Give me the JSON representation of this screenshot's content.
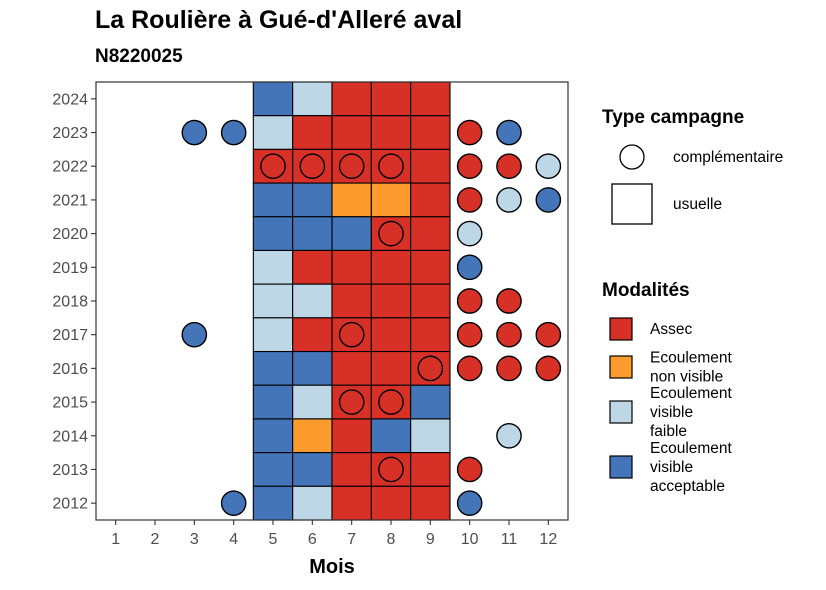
{
  "chart_data": {
    "type": "heatmap",
    "title": "La Roulière à Gué-d'Alleré aval",
    "subtitle": "N8220025",
    "xlabel": "Mois",
    "ylabel": "",
    "x_ticks": [
      "1",
      "2",
      "3",
      "4",
      "5",
      "6",
      "7",
      "8",
      "9",
      "10",
      "11",
      "12"
    ],
    "y_ticks": [
      "2012",
      "2013",
      "2014",
      "2015",
      "2016",
      "2017",
      "2018",
      "2019",
      "2020",
      "2021",
      "2022",
      "2023",
      "2024"
    ],
    "xlim": [
      0.5,
      12.5
    ],
    "ylim": [
      2011.5,
      2024.5
    ],
    "colors": {
      "assec": "#d73027",
      "ecoulement_non_visible": "#fd9b2f",
      "ecoulement_visible_faible": "#bdd7e7",
      "ecoulement_visible_acceptable": "#4475b8"
    },
    "legend_campagne": {
      "title": "Type campagne",
      "items": [
        {
          "shape": "circle",
          "label": "complémentaire"
        },
        {
          "shape": "square",
          "label": "usuelle"
        }
      ]
    },
    "legend_modalites": {
      "title": "Modalités",
      "items": [
        {
          "key": "assec",
          "lines": [
            "Assec"
          ]
        },
        {
          "key": "ecoulement_non_visible",
          "lines": [
            "Ecoulement",
            "non visible"
          ]
        },
        {
          "key": "ecoulement_visible_faible",
          "lines": [
            "Ecoulement",
            "visible",
            "faible"
          ]
        },
        {
          "key": "ecoulement_visible_acceptable",
          "lines": [
            "Ecoulement",
            "visible",
            "acceptable"
          ]
        }
      ]
    },
    "usuelle": [
      {
        "year": 2024,
        "month": 5,
        "modalite": "ecoulement_visible_acceptable"
      },
      {
        "year": 2024,
        "month": 6,
        "modalite": "ecoulement_visible_faible"
      },
      {
        "year": 2024,
        "month": 7,
        "modalite": "assec"
      },
      {
        "year": 2024,
        "month": 8,
        "modalite": "assec"
      },
      {
        "year": 2024,
        "month": 9,
        "modalite": "assec"
      },
      {
        "year": 2023,
        "month": 5,
        "modalite": "ecoulement_visible_faible"
      },
      {
        "year": 2023,
        "month": 6,
        "modalite": "assec"
      },
      {
        "year": 2023,
        "month": 7,
        "modalite": "assec"
      },
      {
        "year": 2023,
        "month": 8,
        "modalite": "assec"
      },
      {
        "year": 2023,
        "month": 9,
        "modalite": "assec"
      },
      {
        "year": 2022,
        "month": 5,
        "modalite": "assec"
      },
      {
        "year": 2022,
        "month": 6,
        "modalite": "assec"
      },
      {
        "year": 2022,
        "month": 7,
        "modalite": "assec"
      },
      {
        "year": 2022,
        "month": 8,
        "modalite": "assec"
      },
      {
        "year": 2022,
        "month": 9,
        "modalite": "assec"
      },
      {
        "year": 2021,
        "month": 5,
        "modalite": "ecoulement_visible_acceptable"
      },
      {
        "year": 2021,
        "month": 6,
        "modalite": "ecoulement_visible_acceptable"
      },
      {
        "year": 2021,
        "month": 7,
        "modalite": "ecoulement_non_visible"
      },
      {
        "year": 2021,
        "month": 8,
        "modalite": "ecoulement_non_visible"
      },
      {
        "year": 2021,
        "month": 9,
        "modalite": "assec"
      },
      {
        "year": 2020,
        "month": 5,
        "modalite": "ecoulement_visible_acceptable"
      },
      {
        "year": 2020,
        "month": 6,
        "modalite": "ecoulement_visible_acceptable"
      },
      {
        "year": 2020,
        "month": 7,
        "modalite": "ecoulement_visible_acceptable"
      },
      {
        "year": 2020,
        "month": 8,
        "modalite": "assec"
      },
      {
        "year": 2020,
        "month": 9,
        "modalite": "assec"
      },
      {
        "year": 2019,
        "month": 5,
        "modalite": "ecoulement_visible_faible"
      },
      {
        "year": 2019,
        "month": 6,
        "modalite": "assec"
      },
      {
        "year": 2019,
        "month": 7,
        "modalite": "assec"
      },
      {
        "year": 2019,
        "month": 8,
        "modalite": "assec"
      },
      {
        "year": 2019,
        "month": 9,
        "modalite": "assec"
      },
      {
        "year": 2018,
        "month": 5,
        "modalite": "ecoulement_visible_faible"
      },
      {
        "year": 2018,
        "month": 6,
        "modalite": "ecoulement_visible_faible"
      },
      {
        "year": 2018,
        "month": 7,
        "modalite": "assec"
      },
      {
        "year": 2018,
        "month": 8,
        "modalite": "assec"
      },
      {
        "year": 2018,
        "month": 9,
        "modalite": "assec"
      },
      {
        "year": 2017,
        "month": 5,
        "modalite": "ecoulement_visible_faible"
      },
      {
        "year": 2017,
        "month": 6,
        "modalite": "assec"
      },
      {
        "year": 2017,
        "month": 7,
        "modalite": "assec"
      },
      {
        "year": 2017,
        "month": 8,
        "modalite": "assec"
      },
      {
        "year": 2017,
        "month": 9,
        "modalite": "assec"
      },
      {
        "year": 2016,
        "month": 5,
        "modalite": "ecoulement_visible_acceptable"
      },
      {
        "year": 2016,
        "month": 6,
        "modalite": "ecoulement_visible_acceptable"
      },
      {
        "year": 2016,
        "month": 7,
        "modalite": "assec"
      },
      {
        "year": 2016,
        "month": 8,
        "modalite": "assec"
      },
      {
        "year": 2016,
        "month": 9,
        "modalite": "assec"
      },
      {
        "year": 2015,
        "month": 5,
        "modalite": "ecoulement_visible_acceptable"
      },
      {
        "year": 2015,
        "month": 6,
        "modalite": "ecoulement_visible_faible"
      },
      {
        "year": 2015,
        "month": 7,
        "modalite": "assec"
      },
      {
        "year": 2015,
        "month": 8,
        "modalite": "assec"
      },
      {
        "year": 2015,
        "month": 9,
        "modalite": "ecoulement_visible_acceptable"
      },
      {
        "year": 2014,
        "month": 5,
        "modalite": "ecoulement_visible_acceptable"
      },
      {
        "year": 2014,
        "month": 6,
        "modalite": "ecoulement_non_visible"
      },
      {
        "year": 2014,
        "month": 7,
        "modalite": "assec"
      },
      {
        "year": 2014,
        "month": 8,
        "modalite": "ecoulement_visible_acceptable"
      },
      {
        "year": 2014,
        "month": 9,
        "modalite": "ecoulement_visible_faible"
      },
      {
        "year": 2013,
        "month": 5,
        "modalite": "ecoulement_visible_acceptable"
      },
      {
        "year": 2013,
        "month": 6,
        "modalite": "ecoulement_visible_acceptable"
      },
      {
        "year": 2013,
        "month": 7,
        "modalite": "assec"
      },
      {
        "year": 2013,
        "month": 8,
        "modalite": "assec"
      },
      {
        "year": 2013,
        "month": 9,
        "modalite": "assec"
      },
      {
        "year": 2012,
        "month": 5,
        "modalite": "ecoulement_visible_acceptable"
      },
      {
        "year": 2012,
        "month": 6,
        "modalite": "ecoulement_visible_faible"
      },
      {
        "year": 2012,
        "month": 7,
        "modalite": "assec"
      },
      {
        "year": 2012,
        "month": 8,
        "modalite": "assec"
      },
      {
        "year": 2012,
        "month": 9,
        "modalite": "assec"
      }
    ],
    "complementaire": [
      {
        "year": 2023,
        "month": 3,
        "modalite": "ecoulement_visible_acceptable"
      },
      {
        "year": 2023,
        "month": 4,
        "modalite": "ecoulement_visible_acceptable"
      },
      {
        "year": 2023,
        "month": 10,
        "modalite": "assec"
      },
      {
        "year": 2023,
        "month": 11,
        "modalite": "ecoulement_visible_acceptable"
      },
      {
        "year": 2022,
        "month": 5,
        "modalite": "assec"
      },
      {
        "year": 2022,
        "month": 6,
        "modalite": "assec"
      },
      {
        "year": 2022,
        "month": 7,
        "modalite": "assec"
      },
      {
        "year": 2022,
        "month": 8,
        "modalite": "assec"
      },
      {
        "year": 2022,
        "month": 10,
        "modalite": "assec"
      },
      {
        "year": 2022,
        "month": 11,
        "modalite": "assec"
      },
      {
        "year": 2022,
        "month": 12,
        "modalite": "ecoulement_visible_faible"
      },
      {
        "year": 2021,
        "month": 10,
        "modalite": "assec"
      },
      {
        "year": 2021,
        "month": 11,
        "modalite": "ecoulement_visible_faible"
      },
      {
        "year": 2021,
        "month": 12,
        "modalite": "ecoulement_visible_acceptable"
      },
      {
        "year": 2020,
        "month": 8,
        "modalite": "assec"
      },
      {
        "year": 2020,
        "month": 10,
        "modalite": "ecoulement_visible_faible"
      },
      {
        "year": 2019,
        "month": 10,
        "modalite": "ecoulement_visible_acceptable"
      },
      {
        "year": 2018,
        "month": 10,
        "modalite": "assec"
      },
      {
        "year": 2018,
        "month": 11,
        "modalite": "assec"
      },
      {
        "year": 2017,
        "month": 3,
        "modalite": "ecoulement_visible_acceptable"
      },
      {
        "year": 2017,
        "month": 7,
        "modalite": "assec"
      },
      {
        "year": 2017,
        "month": 10,
        "modalite": "assec"
      },
      {
        "year": 2017,
        "month": 11,
        "modalite": "assec"
      },
      {
        "year": 2017,
        "month": 12,
        "modalite": "assec"
      },
      {
        "year": 2016,
        "month": 9,
        "modalite": "assec"
      },
      {
        "year": 2016,
        "month": 10,
        "modalite": "assec"
      },
      {
        "year": 2016,
        "month": 11,
        "modalite": "assec"
      },
      {
        "year": 2016,
        "month": 12,
        "modalite": "assec"
      },
      {
        "year": 2015,
        "month": 7,
        "modalite": "assec"
      },
      {
        "year": 2015,
        "month": 8,
        "modalite": "assec"
      },
      {
        "year": 2014,
        "month": 11,
        "modalite": "ecoulement_visible_faible"
      },
      {
        "year": 2013,
        "month": 8,
        "modalite": "assec"
      },
      {
        "year": 2013,
        "month": 10,
        "modalite": "assec"
      },
      {
        "year": 2012,
        "month": 4,
        "modalite": "ecoulement_visible_acceptable"
      },
      {
        "year": 2012,
        "month": 10,
        "modalite": "ecoulement_visible_acceptable"
      }
    ]
  }
}
